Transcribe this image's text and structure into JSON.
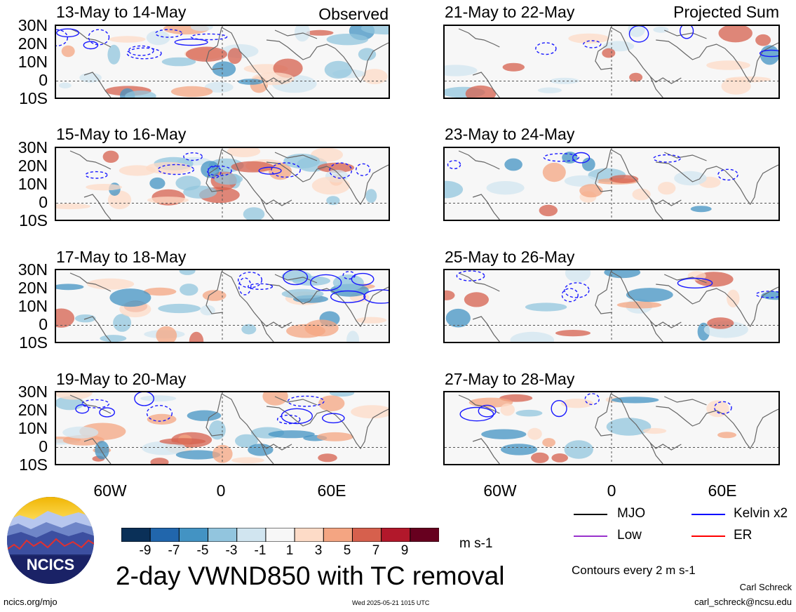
{
  "headings": {
    "observed": "Observed",
    "projected": "Projected Sum"
  },
  "panels": [
    {
      "title": "13-May to 14-May",
      "column": "left"
    },
    {
      "title": "15-May to 16-May",
      "column": "left"
    },
    {
      "title": "17-May to 18-May",
      "column": "left"
    },
    {
      "title": "19-May to 20-May",
      "column": "left"
    },
    {
      "title": "21-May to 22-May",
      "column": "right"
    },
    {
      "title": "23-May to 24-May",
      "column": "right"
    },
    {
      "title": "25-May to 26-May",
      "column": "right"
    },
    {
      "title": "27-May to 28-May",
      "column": "right"
    }
  ],
  "lat_labels": [
    "30N",
    "20N",
    "10N",
    "0",
    "10S"
  ],
  "lon_labels": [
    "60W",
    "0",
    "60E"
  ],
  "colorbar": {
    "labels": [
      "-9",
      "-7",
      "-5",
      "-3",
      "-1",
      "1",
      "3",
      "5",
      "7",
      "9"
    ],
    "colors": [
      "#0a3058",
      "#2166ac",
      "#4393c3",
      "#92c5de",
      "#d1e5f0",
      "#f7f7f7",
      "#fddbc7",
      "#f4a582",
      "#d6604d",
      "#b2182b",
      "#67001f"
    ],
    "units": "m s-1"
  },
  "legend": [
    {
      "label": "MJO",
      "color": "#000000"
    },
    {
      "label": "Kelvin x2",
      "color": "#0000ff"
    },
    {
      "label": "Low",
      "color": "#9932cc"
    },
    {
      "label": "ER",
      "color": "#ff0000"
    }
  ],
  "contour_note": "Contours every 2 m s-1",
  "main_title": "2-day VWND850 with TC removal",
  "logo_text": "NCICS",
  "footer": {
    "url": "ncics.org/mjo",
    "timestamp": "Wed 2025-05-21 1015 UTC",
    "author": "Carl Schreck",
    "email": "carl_schreck@ncsu.edu"
  }
}
